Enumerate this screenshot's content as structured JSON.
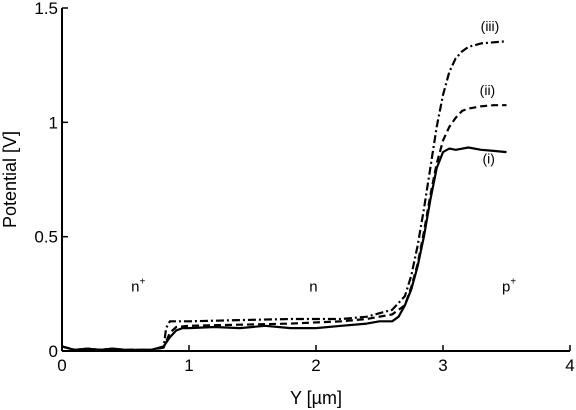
{
  "chart_data": {
    "type": "line",
    "title": "",
    "xlabel": "Y [µm]",
    "ylabel": "Potential [V]",
    "xlim": [
      0,
      4
    ],
    "ylim": [
      0,
      1.5
    ],
    "xticks": [
      "0",
      "1",
      "2",
      "3",
      "4"
    ],
    "yticks": [
      "0",
      "0.5",
      "1",
      "1.5"
    ],
    "grid": false,
    "series": [
      {
        "name": "(i)",
        "style": "solid",
        "x": [
          0,
          0.1,
          0.2,
          0.3,
          0.4,
          0.5,
          0.6,
          0.7,
          0.8,
          0.85,
          0.9,
          0.95,
          1.0,
          1.2,
          1.4,
          1.6,
          1.8,
          2.0,
          2.2,
          2.4,
          2.5,
          2.6,
          2.65,
          2.7,
          2.75,
          2.8,
          2.85,
          2.9,
          2.95,
          3.0,
          3.05,
          3.1,
          3.2,
          3.3,
          3.4,
          3.5
        ],
        "y": [
          0.02,
          0.005,
          0.01,
          0.005,
          0.01,
          0.005,
          0.005,
          0.005,
          0.02,
          0.06,
          0.09,
          0.1,
          0.1,
          0.105,
          0.1,
          0.11,
          0.1,
          0.1,
          0.11,
          0.12,
          0.13,
          0.13,
          0.15,
          0.2,
          0.27,
          0.37,
          0.5,
          0.66,
          0.8,
          0.87,
          0.885,
          0.88,
          0.89,
          0.88,
          0.875,
          0.87
        ]
      },
      {
        "name": "(ii)",
        "style": "dashed",
        "x": [
          0,
          0.1,
          0.2,
          0.3,
          0.4,
          0.5,
          0.6,
          0.7,
          0.8,
          0.85,
          0.9,
          1.0,
          1.4,
          1.8,
          2.2,
          2.4,
          2.6,
          2.7,
          2.75,
          2.8,
          2.85,
          2.9,
          2.95,
          3.0,
          3.05,
          3.1,
          3.15,
          3.2,
          3.3,
          3.4,
          3.5
        ],
        "y": [
          0.02,
          0.005,
          0.01,
          0.005,
          0.01,
          0.005,
          0.005,
          0.005,
          0.015,
          0.08,
          0.105,
          0.11,
          0.115,
          0.12,
          0.13,
          0.14,
          0.16,
          0.2,
          0.28,
          0.38,
          0.52,
          0.68,
          0.82,
          0.92,
          0.98,
          1.02,
          1.05,
          1.06,
          1.07,
          1.075,
          1.075
        ]
      },
      {
        "name": "(iii)",
        "style": "dashdot",
        "x": [
          0,
          0.1,
          0.2,
          0.3,
          0.4,
          0.5,
          0.6,
          0.7,
          0.8,
          0.82,
          0.85,
          1.0,
          1.4,
          1.8,
          2.2,
          2.4,
          2.6,
          2.7,
          2.75,
          2.8,
          2.85,
          2.9,
          2.95,
          3.0,
          3.05,
          3.1,
          3.15,
          3.2,
          3.3,
          3.4,
          3.5
        ],
        "y": [
          0.02,
          0.005,
          0.01,
          0.005,
          0.01,
          0.005,
          0.005,
          0.005,
          0.015,
          0.1,
          0.13,
          0.13,
          0.135,
          0.14,
          0.14,
          0.15,
          0.18,
          0.24,
          0.33,
          0.46,
          0.62,
          0.8,
          0.98,
          1.12,
          1.22,
          1.28,
          1.31,
          1.33,
          1.345,
          1.35,
          1.355
        ]
      }
    ],
    "annotations": [
      {
        "text": "(iii)",
        "x": 3.37,
        "y": 1.4
      },
      {
        "text": "(ii)",
        "x": 3.35,
        "y": 1.12
      },
      {
        "text": "(i)",
        "x": 3.36,
        "y": 0.82
      }
    ],
    "regions": [
      {
        "label": "n",
        "sup": "+",
        "x": 0.6,
        "y": 0.26
      },
      {
        "label": "n",
        "sup": "",
        "x": 1.98,
        "y": 0.26
      },
      {
        "label": "p",
        "sup": "+",
        "x": 3.52,
        "y": 0.26
      }
    ]
  }
}
